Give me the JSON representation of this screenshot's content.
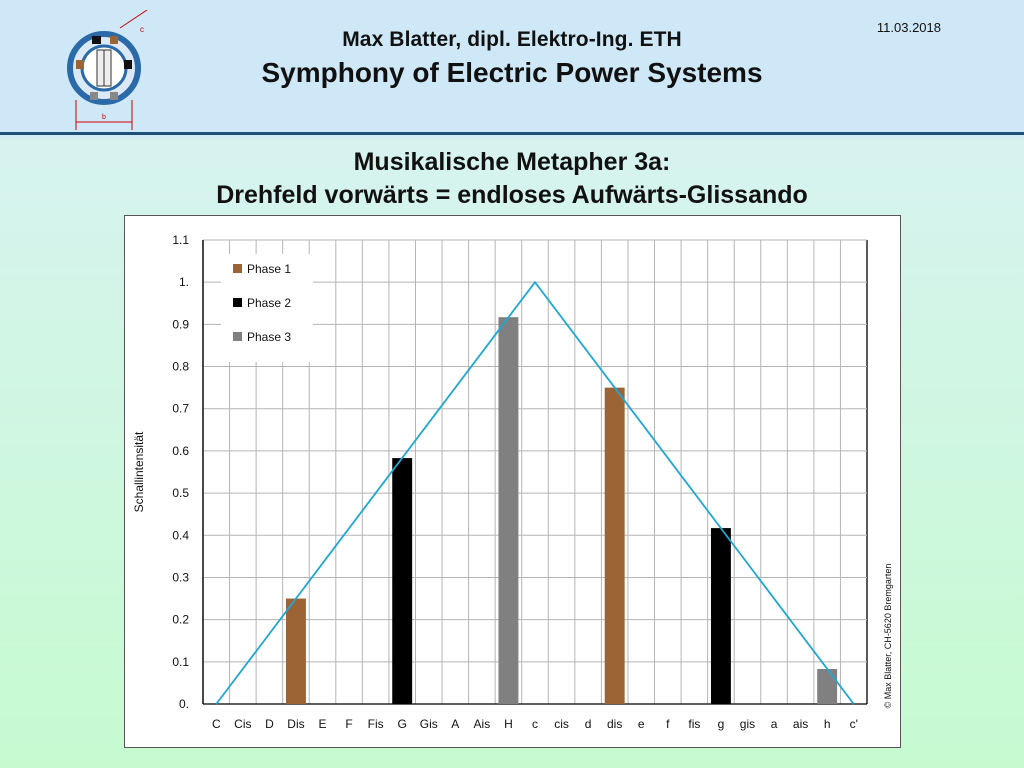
{
  "header": {
    "author": "Max Blatter, dipl. Elektro-Ing. ETH",
    "series_title": "Symphony of Electric Power Systems",
    "date": "11.03.2018",
    "logo_labels": [
      "c",
      "b"
    ]
  },
  "slide": {
    "title_line1": "Musikalische Metapher 3a:",
    "title_line2": "Drehfeld vorwärts = endloses Aufwärts-Glissando"
  },
  "chart_data": {
    "type": "bar",
    "ylabel": "Schallintensität",
    "ylim": [
      0,
      1.1
    ],
    "yticks": [
      0,
      0.1,
      0.2,
      0.3,
      0.4,
      0.5,
      0.6,
      0.7,
      0.8,
      0.9,
      1.0,
      1.1
    ],
    "ytick_labels": [
      "0.",
      "0.1",
      "0.2",
      "0.3",
      "0.4",
      "0.5",
      "0.6",
      "0.7",
      "0.8",
      "0.9",
      "1.",
      "1.1"
    ],
    "categories": [
      "C",
      "Cis",
      "D",
      "Dis",
      "E",
      "F",
      "Fis",
      "G",
      "Gis",
      "A",
      "Ais",
      "H",
      "c",
      "cis",
      "d",
      "dis",
      "e",
      "f",
      "fis",
      "g",
      "gis",
      "a",
      "ais",
      "h",
      "c'"
    ],
    "series": [
      {
        "name": "Phase 1",
        "color": "#9c6434",
        "points": [
          {
            "category": "Dis",
            "value": 0.25
          },
          {
            "category": "dis",
            "value": 0.75
          }
        ]
      },
      {
        "name": "Phase 2",
        "color": "#000000",
        "points": [
          {
            "category": "G",
            "value": 0.583
          },
          {
            "category": "g",
            "value": 0.417
          }
        ]
      },
      {
        "name": "Phase 3",
        "color": "#808080",
        "points": [
          {
            "category": "H",
            "value": 0.917
          },
          {
            "category": "h",
            "value": 0.083
          }
        ]
      }
    ],
    "envelope": {
      "color": "#1ea7d6",
      "points": [
        {
          "category": "C",
          "value": 0
        },
        {
          "category": "c",
          "value": 1.0
        },
        {
          "category": "c'",
          "value": 0
        }
      ]
    },
    "grid": true,
    "legend_position": "top-left",
    "copyright": "© Max Blatter, CH-5620 Bremgarten"
  }
}
